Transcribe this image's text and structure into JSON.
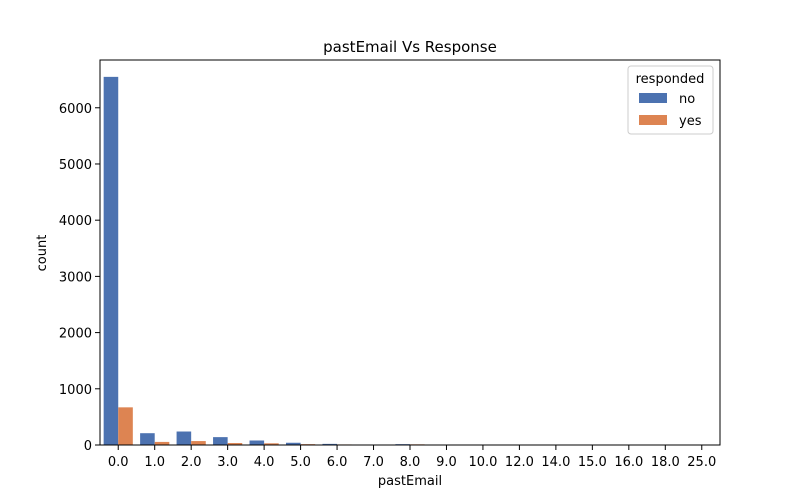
{
  "chart_data": {
    "type": "bar",
    "title": "pastEmail Vs Response",
    "xlabel": "pastEmail",
    "ylabel": "count",
    "ylim": [
      0,
      6850
    ],
    "yticks": [
      0,
      1000,
      2000,
      3000,
      4000,
      5000,
      6000
    ],
    "categories": [
      "0.0",
      "1.0",
      "2.0",
      "3.0",
      "4.0",
      "5.0",
      "6.0",
      "7.0",
      "8.0",
      "9.0",
      "10.0",
      "12.0",
      "14.0",
      "15.0",
      "16.0",
      "18.0",
      "25.0"
    ],
    "legend": {
      "title": "responded",
      "position": "top-right"
    },
    "grid": false,
    "series": [
      {
        "name": "no",
        "color": "#4c72b0",
        "values": [
          6550,
          210,
          240,
          140,
          80,
          40,
          20,
          6,
          15,
          3,
          3,
          2,
          2,
          1,
          1,
          1,
          1
        ]
      },
      {
        "name": "yes",
        "color": "#dd8452",
        "values": [
          670,
          55,
          70,
          35,
          30,
          15,
          10,
          3,
          12,
          2,
          1,
          1,
          0,
          0,
          0,
          0,
          0
        ]
      }
    ]
  }
}
